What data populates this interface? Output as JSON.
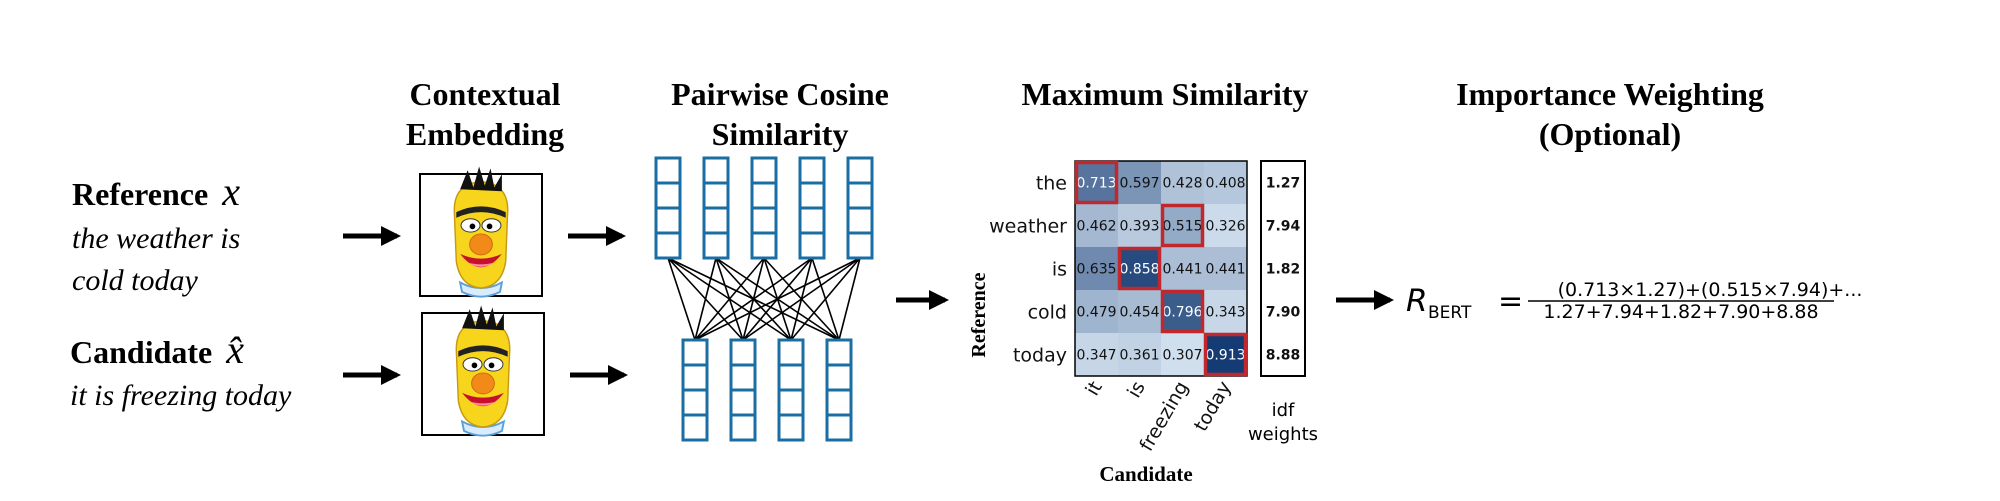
{
  "headers": {
    "embedding": [
      "Contextual",
      "Embedding"
    ],
    "cosine": [
      "Pairwise Cosine",
      "Similarity"
    ],
    "maxsim": "Maximum Similarity",
    "importance": [
      "Importance Weighting",
      "(Optional)"
    ]
  },
  "reference": {
    "label": "Reference",
    "symbol": "x",
    "text_lines": [
      "the weather is",
      "cold today"
    ]
  },
  "candidate": {
    "label": "Candidate",
    "symbol": "x̂",
    "text": "it is freezing today"
  },
  "matrix": {
    "row_tokens": [
      "the",
      "weather",
      "is",
      "cold",
      "today"
    ],
    "col_tokens": [
      "it",
      "is",
      "freezing",
      "today"
    ],
    "values": [
      [
        0.713,
        0.597,
        0.428,
        0.408
      ],
      [
        0.462,
        0.393,
        0.515,
        0.326
      ],
      [
        0.635,
        0.858,
        0.441,
        0.441
      ],
      [
        0.479,
        0.454,
        0.796,
        0.343
      ],
      [
        0.347,
        0.361,
        0.307,
        0.913
      ]
    ],
    "highlighted": [
      [
        0,
        0
      ],
      [
        1,
        2
      ],
      [
        2,
        1
      ],
      [
        3,
        2
      ],
      [
        4,
        3
      ]
    ],
    "row_axis_label": "Reference",
    "col_axis_label": "Candidate",
    "idf_weights": [
      1.27,
      7.94,
      1.82,
      7.9,
      8.88
    ],
    "idf_label": [
      "idf",
      "weights"
    ],
    "highlight_color": "#c0282d",
    "grid_color": "#1b6ea3"
  },
  "formula": {
    "lhs": "R",
    "lhs_sub": "BERT",
    "equals": "=",
    "numerator": "(0.713×1.27)+(0.515×7.94)+...",
    "denominator": "1.27+7.94+1.82+7.90+8.88"
  }
}
